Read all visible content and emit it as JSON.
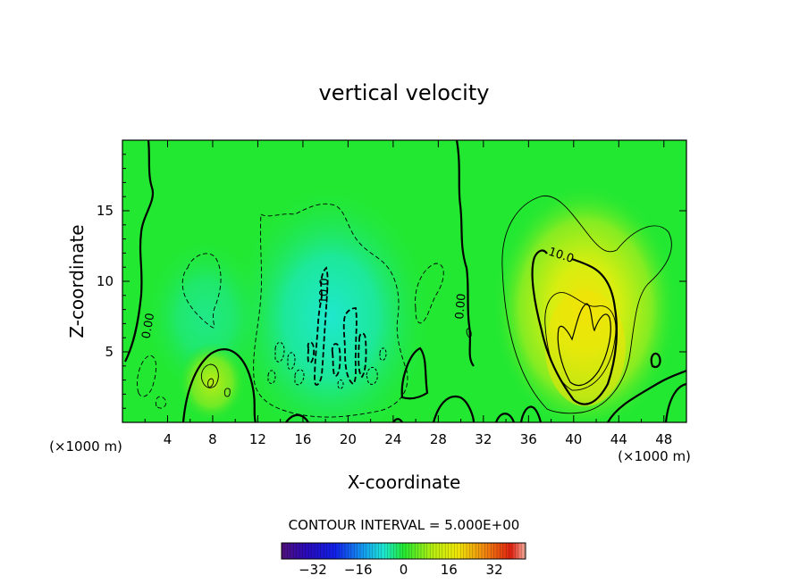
{
  "chart_data": {
    "type": "heatmap",
    "title": "vertical velocity",
    "xlabel": "X-coordinate",
    "ylabel": "Z-coordinate",
    "x_unit": "(×1000 m)",
    "x_unit_right": "(×1000 m)",
    "xlim": [
      0,
      50
    ],
    "ylim": [
      0,
      20
    ],
    "x_ticks": [
      "4",
      "8",
      "12",
      "16",
      "20",
      "24",
      "28",
      "32",
      "36",
      "40",
      "44",
      "48"
    ],
    "x_tick_values": [
      4,
      8,
      12,
      16,
      20,
      24,
      28,
      32,
      36,
      40,
      44,
      48
    ],
    "y_ticks": [
      "5",
      "10",
      "15"
    ],
    "y_tick_values": [
      5,
      10,
      15
    ],
    "contour_interval_text": "CONTOUR INTERVAL = 5.000E+00",
    "contour_labels": [
      {
        "text": "0.00",
        "x": 2.6,
        "y": 6.8,
        "rotation": -80
      },
      {
        "text": "10.0",
        "x": 18.2,
        "y": 9.3,
        "rotation": -88
      },
      {
        "text": "0.00",
        "x": 30.3,
        "y": 8.2,
        "rotation": -85
      },
      {
        "text": "10.0",
        "x": 38.8,
        "y": 11.6,
        "rotation": 18
      }
    ],
    "colorbar": {
      "range": [
        -43,
        43
      ],
      "ticks": [
        "-32",
        "-16",
        "0",
        "16",
        "32"
      ],
      "tick_values": [
        -32,
        -16,
        0,
        16,
        32
      ]
    },
    "features": [
      {
        "kind": "updraft",
        "center_x": 40.5,
        "center_z": 7.5,
        "max": 14
      },
      {
        "kind": "downdraft",
        "center_x": 19,
        "center_z": 8,
        "min": -12
      },
      {
        "kind": "updraft",
        "center_x": 8,
        "center_z": 3,
        "max": 7
      }
    ]
  },
  "colors": {
    "background_field": "#22e832",
    "positive": "#eef010",
    "negative": "#21e8c8"
  }
}
